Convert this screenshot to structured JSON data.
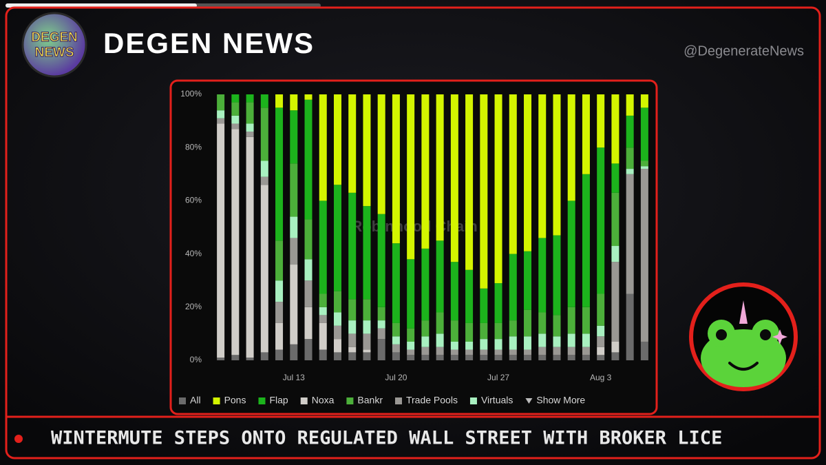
{
  "header": {
    "logo_text": [
      "DEGEN",
      "NEWS"
    ],
    "title": "DEGEN NEWS",
    "handle": "@DegenerateNews"
  },
  "chart_data": {
    "type": "stacked_bar",
    "watermark": "Robinhood Chain",
    "categories": [
      null,
      null,
      null,
      null,
      null,
      "Jul 13",
      null,
      null,
      null,
      null,
      null,
      null,
      "Jul 20",
      null,
      null,
      null,
      null,
      null,
      null,
      "Jul 27",
      null,
      null,
      null,
      null,
      null,
      null,
      "Aug 3",
      null,
      null,
      null
    ],
    "series": [
      {
        "name": "All",
        "color": "#6b6b6b",
        "values": [
          1,
          2,
          1,
          3,
          4,
          6,
          8,
          4,
          3,
          3,
          3,
          8,
          3,
          2,
          2,
          2,
          2,
          2,
          2,
          2,
          2,
          2,
          2,
          2,
          2,
          2,
          2,
          3,
          25,
          7
        ]
      },
      {
        "name": "Pons",
        "color": "#d4f500",
        "values": [
          0,
          0,
          0,
          0,
          5,
          6,
          2,
          40,
          34,
          37,
          42,
          45,
          56,
          62,
          58,
          55,
          63,
          66,
          73,
          71,
          60,
          59,
          54,
          53,
          40,
          30,
          20,
          26,
          8,
          5
        ]
      },
      {
        "name": "Flap",
        "color": "#1cb31c",
        "values": [
          0,
          3,
          3,
          5,
          50,
          20,
          45,
          35,
          40,
          40,
          35,
          35,
          30,
          26,
          27,
          27,
          22,
          20,
          13,
          15,
          25,
          22,
          28,
          30,
          40,
          50,
          55,
          11,
          12,
          20
        ]
      },
      {
        "name": "Noxa",
        "color": "#d0cdc8",
        "values": [
          88,
          85,
          83,
          63,
          10,
          30,
          12,
          10,
          5,
          2,
          1,
          0,
          0,
          0,
          0,
          0,
          0,
          0,
          0,
          0,
          0,
          0,
          0,
          0,
          0,
          0,
          3,
          4,
          0,
          0
        ]
      },
      {
        "name": "Bankr",
        "color": "#4caf3a",
        "values": [
          6,
          5,
          8,
          20,
          15,
          20,
          15,
          5,
          8,
          8,
          8,
          5,
          5,
          5,
          6,
          8,
          8,
          7,
          6,
          6,
          6,
          10,
          8,
          8,
          10,
          10,
          12,
          20,
          8,
          2
        ]
      },
      {
        "name": "Trade Pools",
        "color": "#9a9894",
        "values": [
          2,
          2,
          2,
          3,
          8,
          10,
          10,
          3,
          5,
          5,
          6,
          4,
          3,
          2,
          3,
          3,
          2,
          2,
          2,
          2,
          2,
          2,
          3,
          3,
          3,
          3,
          4,
          30,
          45,
          65
        ]
      },
      {
        "name": "Virtuals",
        "color": "#a8f0c0",
        "values": [
          3,
          3,
          3,
          6,
          8,
          8,
          8,
          3,
          5,
          5,
          5,
          3,
          3,
          3,
          4,
          5,
          3,
          3,
          4,
          4,
          5,
          5,
          5,
          4,
          5,
          5,
          4,
          6,
          2,
          1
        ]
      }
    ],
    "legend_more": "Show More",
    "ylim": [
      0,
      100
    ],
    "yticks": [
      {
        "value": 0,
        "label": "0%"
      },
      {
        "value": 20,
        "label": "20%"
      },
      {
        "value": 40,
        "label": "40%"
      },
      {
        "value": 60,
        "label": "60%"
      },
      {
        "value": 80,
        "label": "80%"
      },
      {
        "value": 100,
        "label": "100%"
      }
    ],
    "grid": false
  },
  "ticker": {
    "headline": "WINTERMUTE STEPS ONTO REGULATED WALL STREET WITH BROKER LICE"
  }
}
